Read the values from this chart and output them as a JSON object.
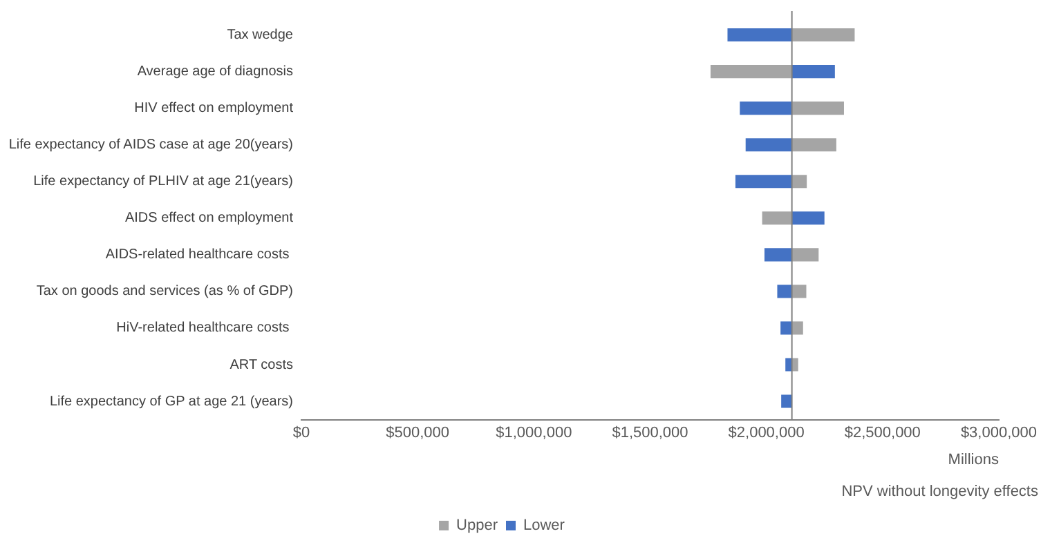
{
  "chart_data": {
    "type": "bar",
    "orientation": "horizontal",
    "categories": [
      "Tax wedge",
      "Average age of diagnosis",
      "HIV effect on employment",
      "Life expectancy of AIDS case at age 20(years)",
      "Life expectancy of PLHIV at age 21(years)",
      "AIDS effect on employment",
      "AIDS-related healthcare costs ",
      "Tax on goods and services (as % of GDP)",
      "HiV-related healthcare costs ",
      "ART costs",
      "Life expectancy of GP at age 21 (years)"
    ],
    "series": [
      {
        "name": "Upper",
        "color": "#a5a5a5",
        "base": [
          2110000,
          2110000,
          2110000,
          2110000,
          2110000,
          2110000,
          2110000,
          2110000,
          2110000,
          2110000,
          null
        ],
        "values": [
          270000,
          -350000,
          224000,
          191000,
          64000,
          -128000,
          115000,
          62000,
          48000,
          27000,
          null
        ]
      },
      {
        "name": "Lower",
        "color": "#4472c4",
        "base": [
          2110000,
          2110000,
          2110000,
          2110000,
          2110000,
          2110000,
          2110000,
          2110000,
          2110000,
          2110000,
          2110000
        ],
        "values": [
          -277000,
          185000,
          -224000,
          -199000,
          -243000,
          140000,
          -118000,
          -63000,
          -49000,
          -28000,
          -46000
        ]
      }
    ],
    "xlim": [
      0,
      3000000
    ],
    "xticks": [
      {
        "value": 0,
        "label": "$0"
      },
      {
        "value": 500000,
        "label": "$500,000"
      },
      {
        "value": 1000000,
        "label": "$1,000,000"
      },
      {
        "value": 1500000,
        "label": "$1,500,000"
      },
      {
        "value": 2000000,
        "label": "$2,000,000"
      },
      {
        "value": 2500000,
        "label": "$2,500,000"
      },
      {
        "value": 3000000,
        "label": "$3,000,000"
      }
    ],
    "xlabel": "NPV without longevity effects",
    "annotations": [
      "Millions"
    ],
    "ref_lines": [
      {
        "axis": "x",
        "value": 2110000,
        "color": "#7f7f7f"
      }
    ],
    "legend": "bottom",
    "grid": false
  }
}
